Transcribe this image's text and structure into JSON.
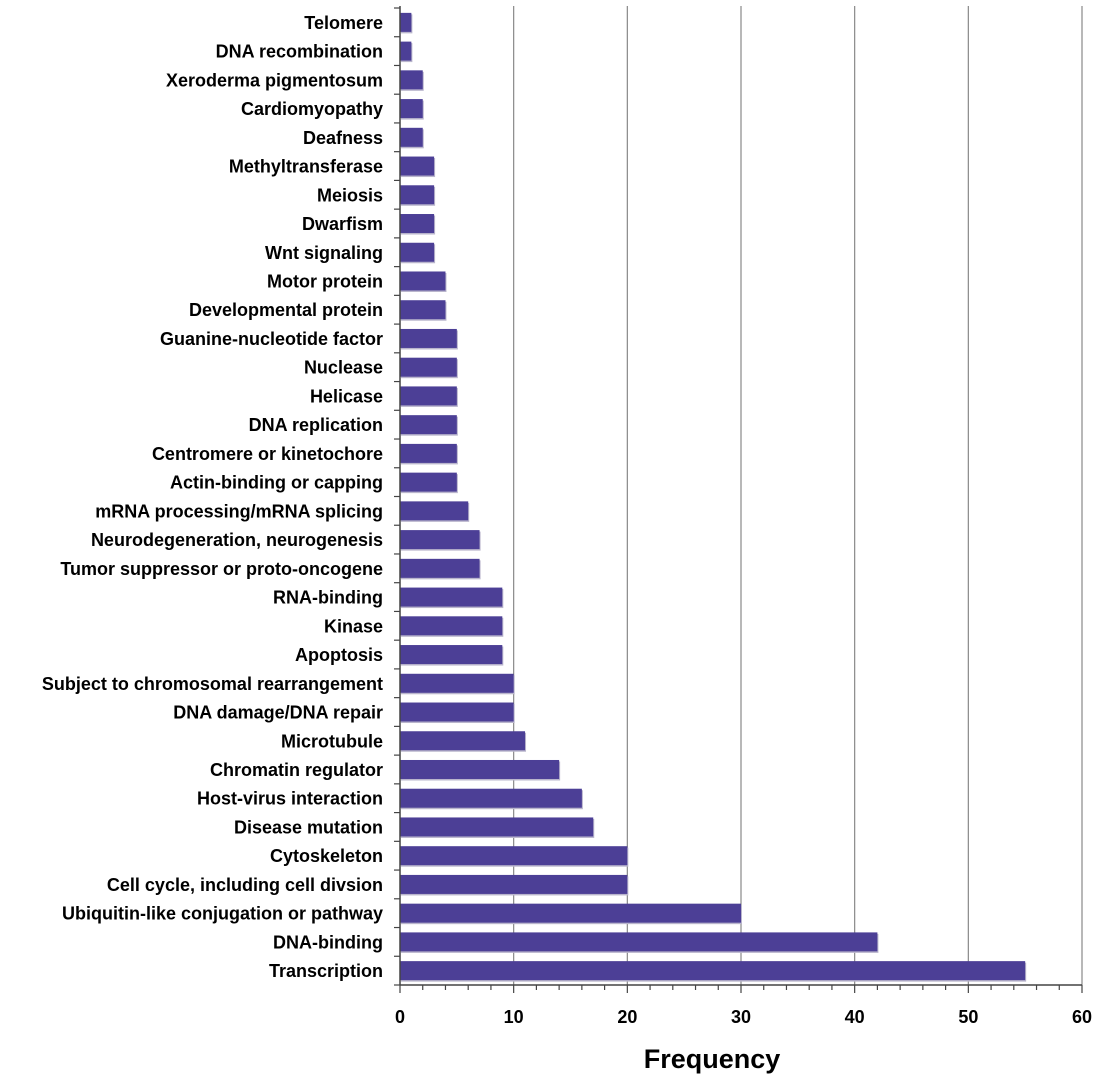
{
  "chart_data": {
    "type": "bar",
    "orientation": "horizontal",
    "title": "",
    "xlabel": "Frequency",
    "ylabel": "",
    "xlim": [
      0,
      60
    ],
    "x_ticks": [
      "0",
      "10",
      "20",
      "30",
      "40",
      "50",
      "60"
    ],
    "grid": "vertical gridlines at major ticks",
    "legend": "none",
    "colors": {
      "bar": "#4c3f96",
      "grid": "#888888",
      "axis": "#444444"
    },
    "categories": [
      "Telomere",
      "DNA recombination",
      "Xeroderma pigmentosum",
      "Cardiomyopathy",
      "Deafness",
      "Methyltransferase",
      "Meiosis",
      "Dwarfism",
      "Wnt signaling",
      "Motor protein",
      "Developmental protein",
      "Guanine-nucleotide factor",
      "Nuclease",
      "Helicase",
      "DNA replication",
      "Centromere or kinetochore",
      "Actin-binding or capping",
      "mRNA processing/mRNA splicing",
      "Neurodegeneration, neurogenesis",
      "Tumor suppressor or proto-oncogene",
      "RNA-binding",
      "Kinase",
      "Apoptosis",
      "Subject to chromosomal rearrangement",
      "DNA damage/DNA repair",
      "Microtubule",
      "Chromatin regulator",
      "Host-virus interaction",
      "Disease mutation",
      "Cytoskeleton",
      "Cell cycle, including cell divsion",
      "Ubiquitin-like conjugation or pathway",
      "DNA-binding",
      "Transcription"
    ],
    "values": [
      1,
      1,
      2,
      2,
      2,
      3,
      3,
      3,
      3,
      4,
      4,
      5,
      5,
      5,
      5,
      5,
      5,
      6,
      7,
      7,
      9,
      9,
      9,
      10,
      10,
      11,
      14,
      16,
      17,
      20,
      20,
      30,
      42,
      55
    ]
  }
}
